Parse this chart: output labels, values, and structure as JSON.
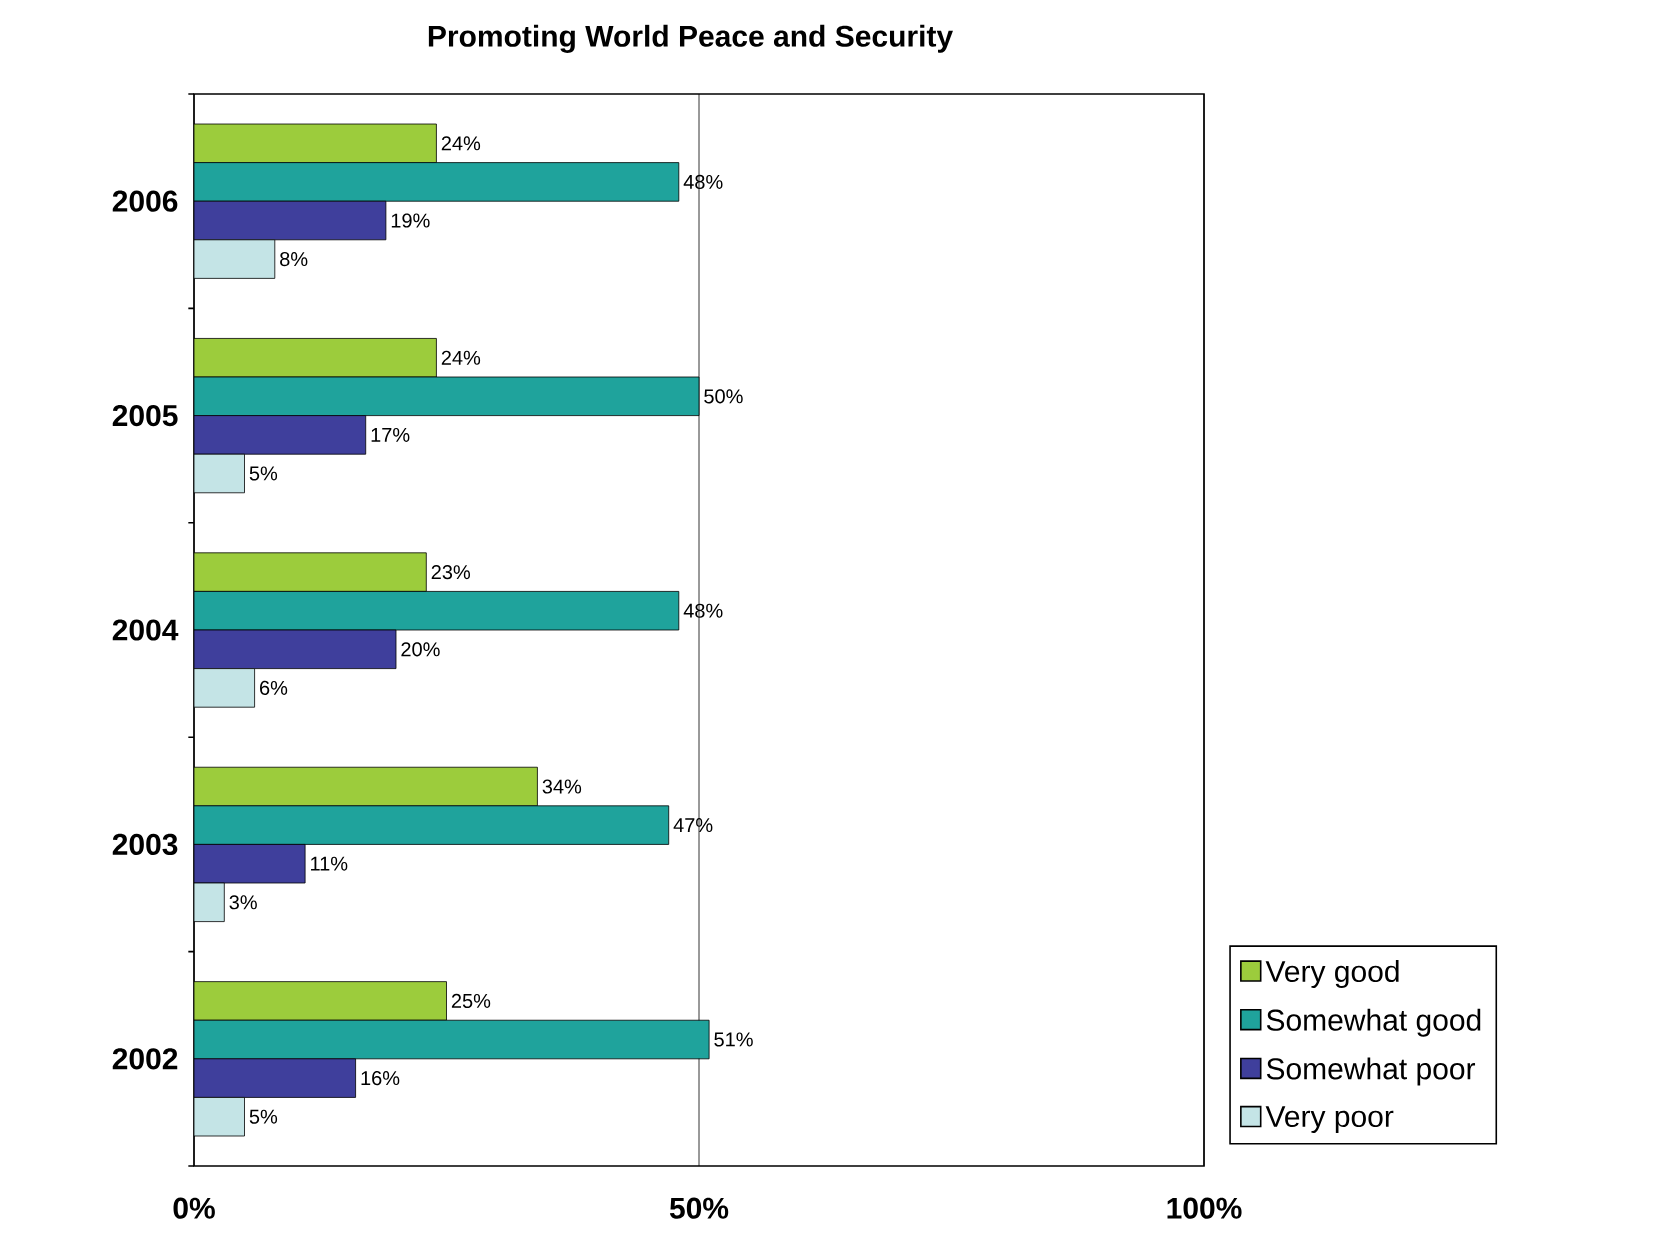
{
  "chart_data": {
    "type": "bar",
    "orientation": "horizontal",
    "title": "Promoting World Peace and Security",
    "categories": [
      "2006",
      "2005",
      "2004",
      "2003",
      "2002"
    ],
    "series": [
      {
        "name": "Very good",
        "color": "#9ccc3c",
        "values": [
          24,
          24,
          23,
          34,
          25
        ],
        "value_labels": [
          "24%",
          "24%",
          "23%",
          "34%",
          "25%"
        ]
      },
      {
        "name": "Somewhat good",
        "color": "#1fa39c",
        "values": [
          48,
          50,
          48,
          47,
          51
        ],
        "value_labels": [
          "48%",
          "50%",
          "48%",
          "47%",
          "51%"
        ]
      },
      {
        "name": "Somewhat poor",
        "color": "#3f3f9c",
        "values": [
          19,
          17,
          20,
          11,
          16
        ],
        "value_labels": [
          "19%",
          "17%",
          "20%",
          "11%",
          "16%"
        ]
      },
      {
        "name": "Very poor",
        "color": "#c4e4e6",
        "values": [
          8,
          5,
          6,
          3,
          5
        ],
        "value_labels": [
          "8%",
          "5%",
          "6%",
          "3%",
          "5%"
        ]
      }
    ],
    "xlim": [
      0,
      100
    ],
    "xticks": [
      {
        "value": 0,
        "label": "0%"
      },
      {
        "value": 50,
        "label": "50%"
      },
      {
        "value": 100,
        "label": "100%"
      }
    ],
    "grid": "x",
    "legend": "bottom right"
  }
}
